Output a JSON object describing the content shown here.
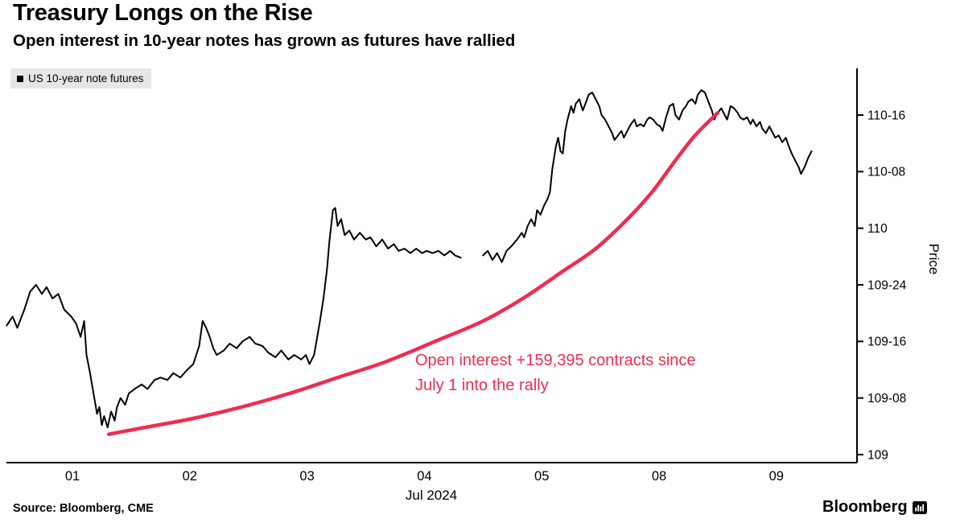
{
  "header": {
    "title": "Treasury Longs on the Rise",
    "subtitle": "Open interest in 10-year notes has grown as futures have rallied"
  },
  "legend": {
    "label": "US 10-year note futures"
  },
  "annotation": {
    "line1": "Open interest +159,395 contracts since",
    "line2": "July 1 into the rally"
  },
  "footer": {
    "source": "Source: Bloomberg, CME",
    "brand": "Bloomberg"
  },
  "colors": {
    "line": "#000000",
    "accent_red": "#ef2d50",
    "legend_bg": "#e6e6e6",
    "axis": "#000000"
  },
  "chart_data": {
    "type": "line",
    "title": "Treasury Longs on the Rise",
    "subtitle": "Open interest in 10-year notes has grown as futures have rallied",
    "xlabel": "Jul 2024",
    "ylabel": "Price",
    "legend_position": "top-left",
    "grid": false,
    "x_axis": {
      "label": "Jul 2024",
      "ticks": [
        {
          "pos": 0,
          "label": "01"
        },
        {
          "pos": 1,
          "label": "02"
        },
        {
          "pos": 2,
          "label": "03"
        },
        {
          "pos": 3,
          "label": "04"
        },
        {
          "pos": 4,
          "label": "05"
        },
        {
          "pos": 5,
          "label": "08"
        },
        {
          "pos": 6,
          "label": "09"
        }
      ],
      "range": [
        -0.56,
        6.69
      ]
    },
    "y_axis": {
      "label": "Price",
      "ticks": [
        {
          "value": 110.5,
          "label": "110-16"
        },
        {
          "value": 110.25,
          "label": "110-08"
        },
        {
          "value": 110.0,
          "label": "110"
        },
        {
          "value": 109.75,
          "label": "109-24"
        },
        {
          "value": 109.5,
          "label": "109-16"
        },
        {
          "value": 109.25,
          "label": "109-08"
        },
        {
          "value": 109.0,
          "label": "109"
        }
      ],
      "range": [
        108.97,
        110.72
      ]
    },
    "series": [
      {
        "name": "US 10-year note futures",
        "role": "price-line",
        "color": "#000000",
        "width": 2,
        "segments": [
          [
            [
              -0.56,
              109.57
            ],
            [
              -0.51,
              109.61
            ],
            [
              -0.47,
              109.56
            ],
            [
              -0.41,
              109.64
            ],
            [
              -0.36,
              109.72
            ],
            [
              -0.31,
              109.75
            ],
            [
              -0.26,
              109.71
            ],
            [
              -0.22,
              109.74
            ],
            [
              -0.17,
              109.69
            ],
            [
              -0.12,
              109.71
            ],
            [
              -0.07,
              109.64
            ],
            [
              -0.01,
              109.61
            ],
            [
              0.03,
              109.58
            ],
            [
              0.07,
              109.52
            ],
            [
              0.1,
              109.59
            ],
            [
              0.12,
              109.44
            ],
            [
              0.15,
              109.36
            ],
            [
              0.18,
              109.27
            ],
            [
              0.21,
              109.18
            ],
            [
              0.23,
              109.21
            ],
            [
              0.25,
              109.13
            ],
            [
              0.27,
              109.17
            ],
            [
              0.3,
              109.12
            ],
            [
              0.33,
              109.19
            ],
            [
              0.36,
              109.15
            ],
            [
              0.38,
              109.21
            ],
            [
              0.41,
              109.25
            ],
            [
              0.45,
              109.22
            ],
            [
              0.48,
              109.27
            ],
            [
              0.53,
              109.29
            ],
            [
              0.59,
              109.31
            ],
            [
              0.64,
              109.29
            ],
            [
              0.7,
              109.33
            ],
            [
              0.75,
              109.34
            ],
            [
              0.81,
              109.33
            ],
            [
              0.86,
              109.36
            ],
            [
              0.92,
              109.34
            ],
            [
              0.97,
              109.37
            ],
            [
              1.03,
              109.4
            ],
            [
              1.08,
              109.48
            ],
            [
              1.11,
              109.59
            ],
            [
              1.14,
              109.56
            ],
            [
              1.17,
              109.52
            ],
            [
              1.2,
              109.47
            ],
            [
              1.23,
              109.44
            ],
            [
              1.29,
              109.46
            ],
            [
              1.34,
              109.49
            ],
            [
              1.4,
              109.47
            ],
            [
              1.45,
              109.5
            ],
            [
              1.51,
              109.52
            ],
            [
              1.56,
              109.49
            ],
            [
              1.62,
              109.48
            ],
            [
              1.67,
              109.45
            ],
            [
              1.73,
              109.43
            ],
            [
              1.78,
              109.46
            ],
            [
              1.84,
              109.42
            ],
            [
              1.89,
              109.44
            ],
            [
              1.95,
              109.42
            ],
            [
              1.99,
              109.44
            ],
            [
              2.02,
              109.4
            ],
            [
              2.06,
              109.44
            ],
            [
              2.08,
              109.5
            ],
            [
              2.11,
              109.59
            ],
            [
              2.14,
              109.69
            ],
            [
              2.17,
              109.82
            ],
            [
              2.19,
              109.94
            ],
            [
              2.22,
              110.08
            ],
            [
              2.24,
              110.09
            ],
            [
              2.26,
              110.01
            ],
            [
              2.29,
              110.04
            ],
            [
              2.32,
              109.97
            ],
            [
              2.36,
              109.99
            ],
            [
              2.4,
              109.95
            ],
            [
              2.45,
              109.98
            ],
            [
              2.5,
              109.95
            ],
            [
              2.54,
              109.96
            ],
            [
              2.59,
              109.92
            ],
            [
              2.64,
              109.95
            ],
            [
              2.69,
              109.91
            ],
            [
              2.74,
              109.93
            ],
            [
              2.78,
              109.9
            ],
            [
              2.83,
              109.91
            ],
            [
              2.88,
              109.89
            ],
            [
              2.93,
              109.91
            ],
            [
              2.98,
              109.89
            ],
            [
              3.02,
              109.9
            ],
            [
              3.07,
              109.89
            ],
            [
              3.12,
              109.9
            ],
            [
              3.17,
              109.88
            ],
            [
              3.22,
              109.9
            ],
            [
              3.26,
              109.88
            ],
            [
              3.31,
              109.87
            ]
          ],
          [
            [
              3.5,
              109.88
            ],
            [
              3.54,
              109.9
            ],
            [
              3.58,
              109.86
            ],
            [
              3.62,
              109.89
            ],
            [
              3.66,
              109.85
            ],
            [
              3.7,
              109.9
            ],
            [
              3.74,
              109.92
            ],
            [
              3.79,
              109.95
            ],
            [
              3.83,
              109.98
            ],
            [
              3.85,
              109.96
            ],
            [
              3.88,
              110.01
            ],
            [
              3.91,
              110.04
            ],
            [
              3.94,
              110.01
            ],
            [
              3.96,
              110.08
            ],
            [
              3.99,
              110.06
            ],
            [
              4.02,
              110.1
            ],
            [
              4.05,
              110.13
            ],
            [
              4.07,
              110.16
            ],
            [
              4.09,
              110.26
            ],
            [
              4.12,
              110.36
            ],
            [
              4.14,
              110.4
            ],
            [
              4.16,
              110.34
            ],
            [
              4.18,
              110.33
            ],
            [
              4.2,
              110.43
            ],
            [
              4.22,
              110.48
            ],
            [
              4.25,
              110.54
            ],
            [
              4.27,
              110.51
            ],
            [
              4.29,
              110.55
            ],
            [
              4.32,
              110.57
            ],
            [
              4.35,
              110.52
            ],
            [
              4.38,
              110.56
            ],
            [
              4.4,
              110.59
            ],
            [
              4.43,
              110.6
            ],
            [
              4.46,
              110.57
            ],
            [
              4.49,
              110.54
            ],
            [
              4.51,
              110.5
            ],
            [
              4.54,
              110.48
            ],
            [
              4.57,
              110.45
            ],
            [
              4.6,
              110.42
            ],
            [
              4.62,
              110.39
            ],
            [
              4.65,
              110.41
            ],
            [
              4.68,
              110.43
            ],
            [
              4.7,
              110.4
            ],
            [
              4.73,
              110.43
            ],
            [
              4.76,
              110.46
            ],
            [
              4.79,
              110.48
            ],
            [
              4.81,
              110.45
            ],
            [
              4.84,
              110.46
            ],
            [
              4.87,
              110.45
            ],
            [
              4.9,
              110.48
            ],
            [
              4.92,
              110.49
            ],
            [
              4.95,
              110.48
            ],
            [
              4.98,
              110.46
            ],
            [
              5.01,
              110.45
            ],
            [
              5.03,
              110.43
            ],
            [
              5.06,
              110.49
            ],
            [
              5.09,
              110.54
            ],
            [
              5.12,
              110.55
            ],
            [
              5.14,
              110.5
            ],
            [
              5.17,
              110.48
            ],
            [
              5.2,
              110.52
            ],
            [
              5.23,
              110.54
            ],
            [
              5.25,
              110.56
            ],
            [
              5.28,
              110.57
            ],
            [
              5.31,
              110.55
            ],
            [
              5.33,
              110.59
            ],
            [
              5.36,
              110.61
            ],
            [
              5.39,
              110.6
            ],
            [
              5.42,
              110.56
            ],
            [
              5.45,
              110.52
            ],
            [
              5.47,
              110.48
            ],
            [
              5.5,
              110.51
            ],
            [
              5.53,
              110.53
            ],
            [
              5.56,
              110.5
            ],
            [
              5.58,
              110.48
            ],
            [
              5.61,
              110.54
            ],
            [
              5.64,
              110.53
            ],
            [
              5.67,
              110.51
            ],
            [
              5.69,
              110.49
            ],
            [
              5.72,
              110.48
            ],
            [
              5.75,
              110.49
            ],
            [
              5.78,
              110.46
            ],
            [
              5.8,
              110.48
            ],
            [
              5.83,
              110.45
            ],
            [
              5.86,
              110.47
            ],
            [
              5.88,
              110.44
            ],
            [
              5.91,
              110.42
            ],
            [
              5.94,
              110.45
            ],
            [
              5.97,
              110.42
            ],
            [
              5.99,
              110.4
            ],
            [
              6.02,
              110.41
            ],
            [
              6.05,
              110.38
            ],
            [
              6.08,
              110.4
            ],
            [
              6.1,
              110.37
            ],
            [
              6.13,
              110.33
            ],
            [
              6.16,
              110.3
            ],
            [
              6.19,
              110.27
            ],
            [
              6.21,
              110.24
            ],
            [
              6.24,
              110.27
            ],
            [
              6.27,
              110.31
            ],
            [
              6.3,
              110.34
            ]
          ]
        ]
      },
      {
        "name": "Open interest growth curve (+159,395 contracts since July 1)",
        "role": "annotation-curve",
        "color": "#ef2d50",
        "width": 4.5,
        "smooth": true,
        "points": [
          [
            0.31,
            109.09
          ],
          [
            0.62,
            109.12
          ],
          [
            1.03,
            109.16
          ],
          [
            1.44,
            109.21
          ],
          [
            1.85,
            109.27
          ],
          [
            2.26,
            109.34
          ],
          [
            2.67,
            109.41
          ],
          [
            3.09,
            109.5
          ],
          [
            3.5,
            109.59
          ],
          [
            3.84,
            109.69
          ],
          [
            4.18,
            109.81
          ],
          [
            4.46,
            109.91
          ],
          [
            4.73,
            110.04
          ],
          [
            4.94,
            110.16
          ],
          [
            5.14,
            110.3
          ],
          [
            5.29,
            110.4
          ],
          [
            5.4,
            110.46
          ],
          [
            5.5,
            110.51
          ]
        ]
      }
    ]
  }
}
